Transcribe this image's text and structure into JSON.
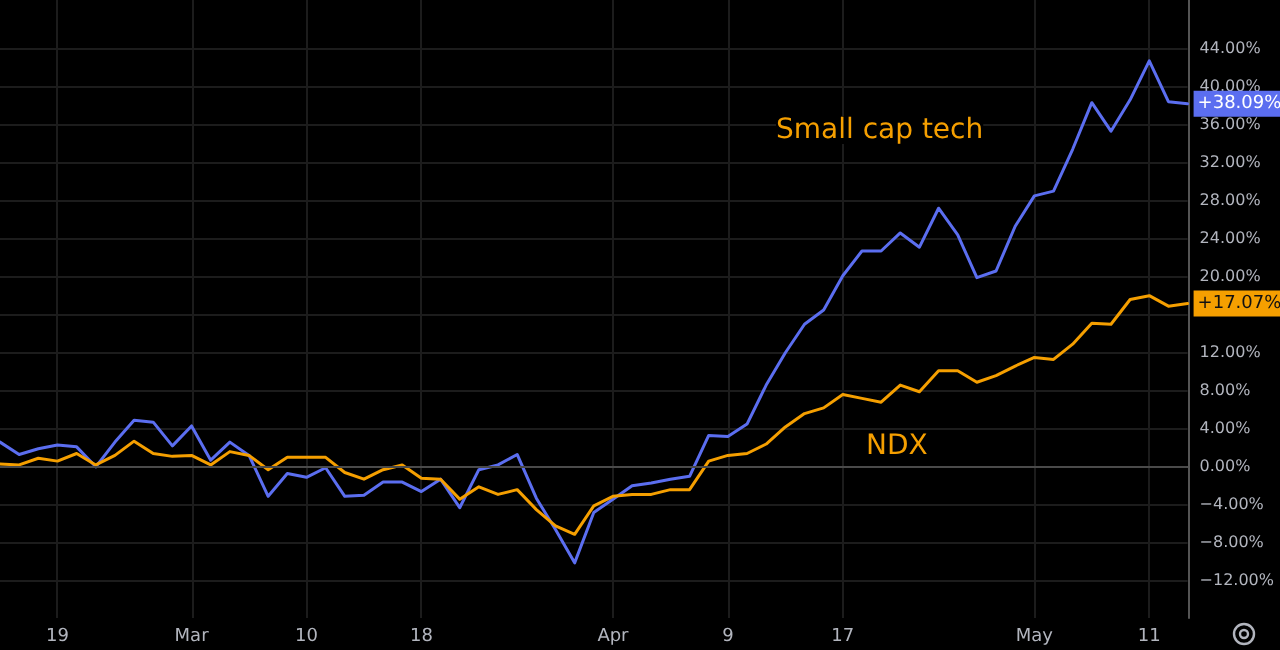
{
  "chart_data": {
    "type": "line",
    "categories": [
      null,
      null,
      null,
      "19",
      null,
      null,
      null,
      null,
      null,
      null,
      "Mar",
      null,
      null,
      null,
      null,
      null,
      "10",
      null,
      null,
      null,
      null,
      null,
      "18",
      null,
      null,
      null,
      null,
      null,
      null,
      null,
      null,
      null,
      "Apr",
      null,
      null,
      null,
      null,
      null,
      "9",
      null,
      null,
      null,
      null,
      null,
      "17",
      null,
      null,
      null,
      null,
      null,
      null,
      null,
      null,
      null,
      "May",
      null,
      null,
      null,
      null,
      null,
      "11",
      null,
      null
    ],
    "series": [
      {
        "color": "#5b6ef0",
        "values": [
          2.5,
          1.2,
          1.8,
          2.2,
          2.0,
          -0.1,
          2.5,
          4.8,
          4.6,
          2.1,
          4.2,
          0.6,
          2.5,
          1.1,
          -3.2,
          -0.8,
          -1.2,
          -0.2,
          -3.2,
          -3.1,
          -1.7,
          -1.7,
          -2.7,
          -1.4,
          -4.4,
          -0.4,
          0.1,
          1.2,
          -3.4,
          -6.7,
          -10.2,
          -4.9,
          -3.5,
          -2.1,
          -1.8,
          -1.4,
          -1.1,
          3.2,
          3.1,
          4.4,
          8.5,
          11.9,
          14.9,
          16.4,
          20.0,
          22.6,
          22.6,
          24.5,
          23.0,
          27.1,
          24.3,
          19.8,
          20.5,
          25.2,
          28.4,
          28.9,
          33.3,
          38.2,
          35.2,
          38.5,
          42.6,
          38.3,
          38.09
        ],
        "value_labels": [
          null,
          null,
          null,
          null,
          null,
          null,
          null,
          null,
          null,
          null,
          null,
          null,
          null,
          null,
          null,
          null,
          null,
          null,
          null,
          null,
          null,
          null,
          null,
          null,
          null,
          null,
          null,
          null,
          null,
          null,
          null,
          null,
          null,
          null,
          null,
          null,
          null,
          null,
          null,
          null,
          null,
          null,
          null,
          null,
          null,
          null,
          null,
          null,
          null,
          null,
          null,
          null,
          null,
          null,
          null,
          null,
          null,
          null,
          null,
          null,
          null,
          null,
          "+38.09%"
        ]
      },
      {
        "color": "#f59f00",
        "values": [
          0.2,
          0.1,
          0.8,
          0.5,
          1.3,
          0.1,
          1.1,
          2.6,
          1.3,
          1.0,
          1.1,
          0.1,
          1.5,
          1.1,
          -0.4,
          0.9,
          0.9,
          0.9,
          -0.7,
          -1.4,
          -0.4,
          0.1,
          -1.3,
          -1.4,
          -3.5,
          -2.2,
          -3.0,
          -2.5,
          -4.6,
          -6.3,
          -7.2,
          -4.2,
          -3.2,
          -3.0,
          -3.0,
          -2.5,
          -2.5,
          0.5,
          1.1,
          1.3,
          2.3,
          4.1,
          5.5,
          6.1,
          7.5,
          7.1,
          6.7,
          8.5,
          7.8,
          10.0,
          10.0,
          8.8,
          9.5,
          10.5,
          11.4,
          11.2,
          12.8,
          15.0,
          14.9,
          17.5,
          17.9,
          16.8,
          17.07
        ],
        "value_labels": [
          null,
          null,
          null,
          null,
          null,
          null,
          null,
          null,
          null,
          null,
          null,
          null,
          null,
          null,
          null,
          null,
          null,
          null,
          null,
          null,
          null,
          null,
          null,
          null,
          null,
          null,
          null,
          null,
          null,
          null,
          null,
          null,
          null,
          null,
          null,
          null,
          null,
          null,
          null,
          null,
          null,
          null,
          null,
          null,
          null,
          null,
          null,
          null,
          null,
          null,
          null,
          null,
          null,
          null,
          null,
          null,
          null,
          null,
          null,
          null,
          null,
          null,
          "+17.07%"
        ]
      }
    ],
    "ylim": [
      -16,
      49
    ],
    "yticks": [
      {
        "value": -12,
        "label": "−12.00%"
      },
      {
        "value": -8,
        "label": "−8.00%"
      },
      {
        "value": -4,
        "label": "−4.00%"
      },
      {
        "value": 0,
        "label": "0.00%"
      },
      {
        "value": 4,
        "label": "4.00%"
      },
      {
        "value": 8,
        "label": "8.00%"
      },
      {
        "value": 12,
        "label": "12.00%"
      },
      {
        "value": 16,
        "label": null
      },
      {
        "value": 20,
        "label": "20.00%"
      },
      {
        "value": 24,
        "label": "24.00%"
      },
      {
        "value": 28,
        "label": "28.00%"
      },
      {
        "value": 32,
        "label": "32.00%"
      },
      {
        "value": 36,
        "label": "36.00%"
      },
      {
        "value": 40,
        "label": "40.00%"
      },
      {
        "value": 44,
        "label": "44.00%"
      }
    ],
    "ref_lines": [
      {
        "axis": "y",
        "value": 0,
        "color": "#4a4a4a"
      }
    ],
    "annotations": [
      "Small cap tech",
      "NDX"
    ],
    "grid": true,
    "marker": "none",
    "line_style": "solid"
  }
}
